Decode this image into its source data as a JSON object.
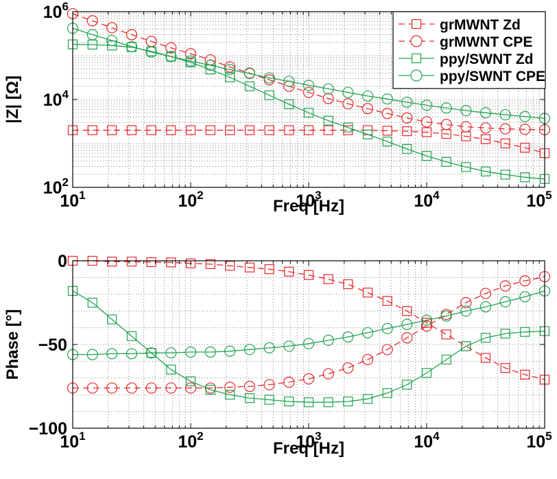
{
  "colors": {
    "red": "#e8262a",
    "green": "#20a351",
    "axis": "#000000",
    "grid": "#7f7f7f"
  },
  "chart_data": [
    {
      "type": "line",
      "title": "",
      "xlabel": "Freq [Hz]",
      "ylabel": "|Z| [Ω]",
      "xscale": "log",
      "yscale": "log",
      "xlim": [
        10,
        100000
      ],
      "ylim": [
        100,
        1000000
      ],
      "grid": true,
      "legend_position": "top-right",
      "x_ticks": [
        {
          "value": 10,
          "base": "10",
          "exp": "1"
        },
        {
          "value": 100,
          "base": "10",
          "exp": "2"
        },
        {
          "value": 1000,
          "base": "10",
          "exp": "3"
        },
        {
          "value": 10000,
          "base": "10",
          "exp": "4"
        },
        {
          "value": 100000,
          "base": "10",
          "exp": "5"
        }
      ],
      "y_ticks": [
        {
          "value": 100,
          "base": "10",
          "exp": "2"
        },
        {
          "value": 10000,
          "base": "10",
          "exp": "4"
        },
        {
          "value": 1000000,
          "base": "10",
          "exp": "6"
        }
      ],
      "x": [
        10,
        14.7,
        21.5,
        31.6,
        46.4,
        68.1,
        100,
        147,
        215,
        316,
        464,
        681,
        1000,
        1468,
        2154,
        3162,
        4642,
        6813,
        10000,
        14678,
        21544,
        31623,
        46416,
        68129,
        100000
      ],
      "series": [
        {
          "name": "grMWNT Zd",
          "color": "red",
          "marker": "square",
          "dash": true,
          "values": [
            2000,
            2000,
            2000,
            2000,
            2000,
            2000,
            2000,
            2000,
            2000,
            2000,
            2000,
            2000,
            2000,
            2000,
            2000,
            2000,
            1950,
            1900,
            1800,
            1650,
            1450,
            1250,
            1000,
            800,
            600
          ]
        },
        {
          "name": "grMWNT CPE",
          "color": "red",
          "marker": "circle",
          "dash": true,
          "values": [
            900000,
            620000,
            430000,
            300000,
            210000,
            150000,
            110000,
            80000,
            55000,
            40000,
            28000,
            20000,
            14500,
            10500,
            8000,
            6200,
            4800,
            3800,
            3100,
            2700,
            2400,
            2250,
            2150,
            2100,
            2050
          ]
        },
        {
          "name": "ppy/SWNT Zd",
          "color": "green",
          "marker": "square",
          "dash": false,
          "values": [
            180000,
            178000,
            170000,
            155000,
            125000,
            95000,
            70000,
            48000,
            32000,
            20000,
            12500,
            7800,
            5000,
            3300,
            2300,
            1600,
            1100,
            750,
            520,
            380,
            290,
            230,
            195,
            170,
            155
          ]
        },
        {
          "name": "ppy/SWNT CPE",
          "color": "green",
          "marker": "circle",
          "dash": false,
          "values": [
            420000,
            300000,
            220000,
            160000,
            120000,
            95000,
            75000,
            60000,
            48000,
            39000,
            31000,
            26000,
            21000,
            17500,
            14500,
            12000,
            10300,
            8700,
            7400,
            6400,
            5600,
            5000,
            4500,
            4100,
            3700
          ]
        }
      ]
    },
    {
      "type": "line",
      "title": "",
      "xlabel": "Freq [Hz]",
      "ylabel": "Phase [°]",
      "xscale": "log",
      "yscale": "linear",
      "xlim": [
        10,
        100000
      ],
      "ylim": [
        -100,
        0
      ],
      "grid": true,
      "x_ticks": [
        {
          "value": 10,
          "base": "10",
          "exp": "1"
        },
        {
          "value": 100,
          "base": "10",
          "exp": "2"
        },
        {
          "value": 1000,
          "base": "10",
          "exp": "3"
        },
        {
          "value": 10000,
          "base": "10",
          "exp": "4"
        },
        {
          "value": 100000,
          "base": "10",
          "exp": "5"
        }
      ],
      "y_ticks": [
        {
          "value": 0,
          "label": "0"
        },
        {
          "value": -50,
          "label": "−50"
        },
        {
          "value": -100,
          "label": "−100"
        }
      ],
      "x": [
        10,
        14.7,
        21.5,
        31.6,
        46.4,
        68.1,
        100,
        147,
        215,
        316,
        464,
        681,
        1000,
        1468,
        2154,
        3162,
        4642,
        6813,
        10000,
        14678,
        21544,
        31623,
        46416,
        68129,
        100000
      ],
      "series": [
        {
          "name": "grMWNT Zd",
          "color": "red",
          "marker": "square",
          "dash": true,
          "values": [
            0,
            0,
            -0.5,
            -0.5,
            -0.8,
            -1,
            -1.5,
            -2,
            -3,
            -4,
            -5,
            -6.5,
            -8.5,
            -11,
            -14,
            -19,
            -24,
            -30,
            -37,
            -44,
            -51,
            -58,
            -64,
            -68,
            -71
          ]
        },
        {
          "name": "grMWNT CPE",
          "color": "red",
          "marker": "circle",
          "dash": true,
          "values": [
            -76,
            -76,
            -76,
            -76,
            -76,
            -76,
            -76,
            -76,
            -75.5,
            -75,
            -74,
            -72.5,
            -70.5,
            -67.5,
            -64,
            -59,
            -53,
            -46,
            -39,
            -32,
            -25,
            -19.5,
            -15,
            -12,
            -9.5
          ]
        },
        {
          "name": "ppy/SWNT Zd",
          "color": "green",
          "marker": "square",
          "dash": false,
          "values": [
            -18,
            -25,
            -35,
            -45,
            -55,
            -65,
            -72,
            -77,
            -80,
            -82,
            -83,
            -84,
            -84.5,
            -84.5,
            -84,
            -82.5,
            -79,
            -74,
            -67,
            -59,
            -51,
            -46,
            -43.5,
            -42.5,
            -42
          ]
        },
        {
          "name": "ppy/SWNT CPE",
          "color": "green",
          "marker": "circle",
          "dash": false,
          "values": [
            -56,
            -56,
            -55.5,
            -55.5,
            -55,
            -55,
            -54.5,
            -54.5,
            -54,
            -53,
            -52,
            -51,
            -49.5,
            -47.5,
            -45.5,
            -43,
            -40.5,
            -38,
            -35.5,
            -33,
            -30,
            -27.5,
            -24.5,
            -21.5,
            -18
          ]
        }
      ]
    }
  ]
}
